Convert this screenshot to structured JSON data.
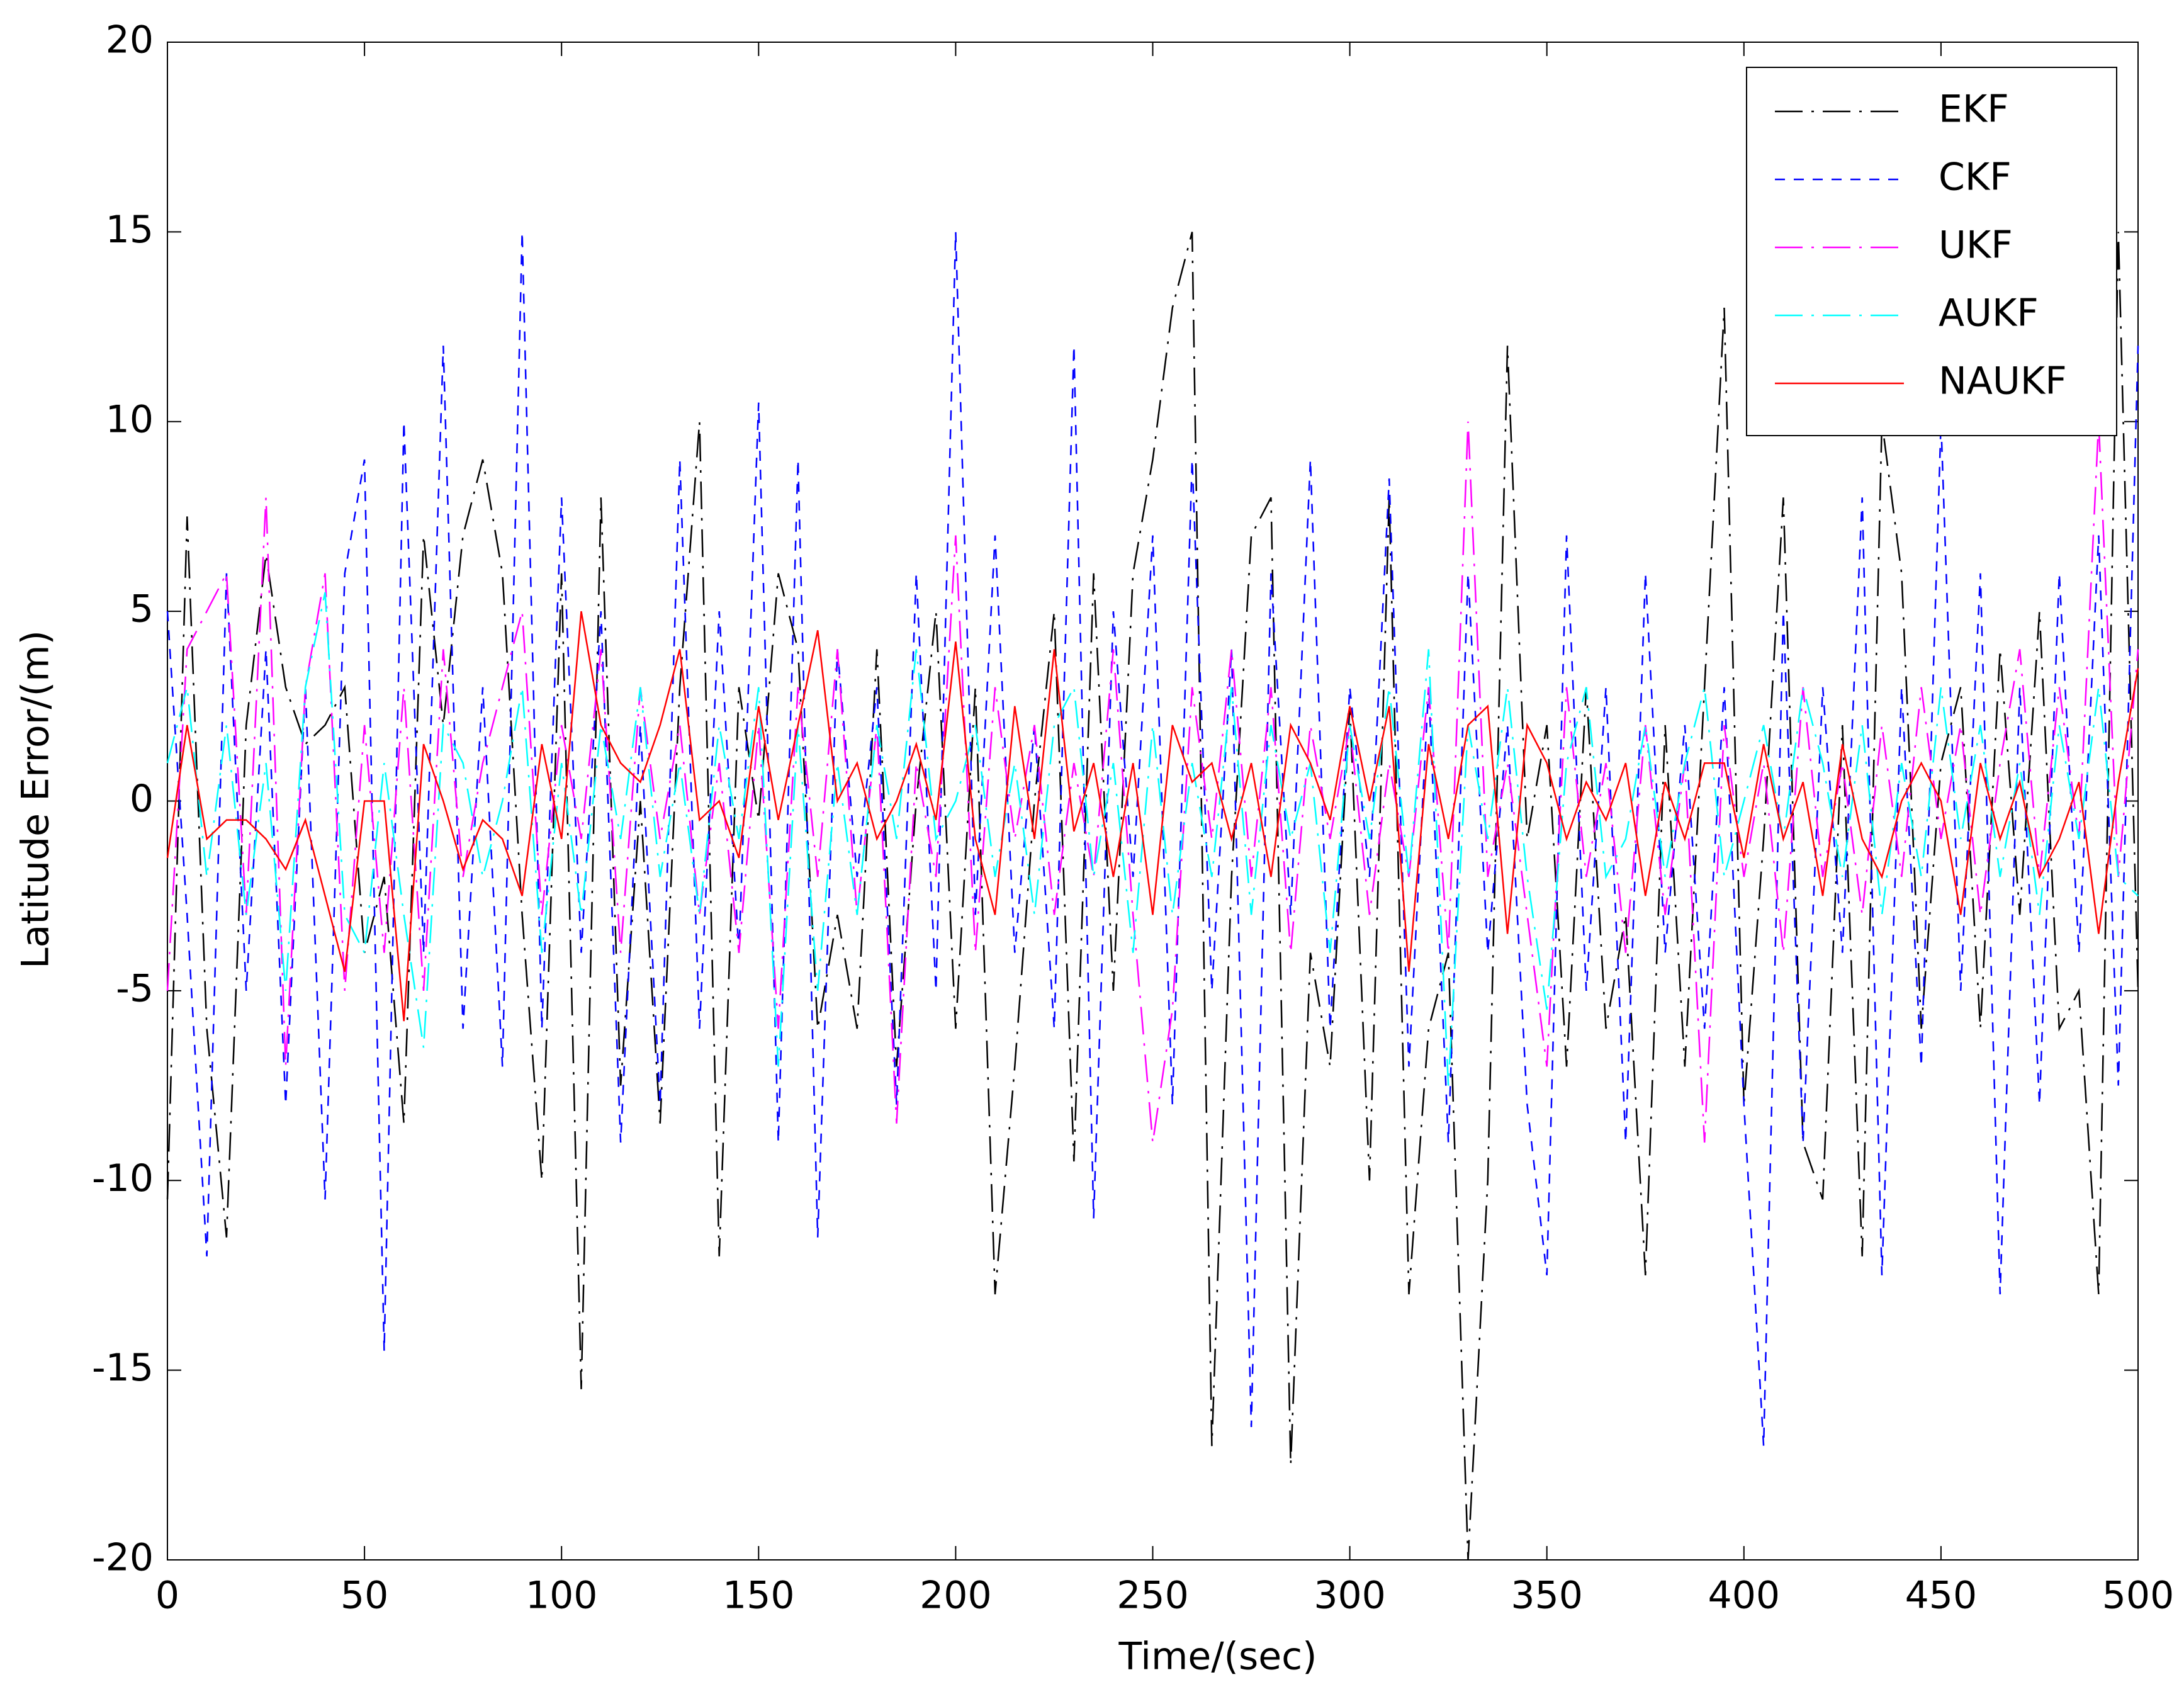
{
  "chart_data": {
    "type": "line",
    "x_label": "Time/(sec)",
    "y_label": "Latitude Error/(m)",
    "xlim": [
      0,
      500
    ],
    "ylim": [
      -20,
      20
    ],
    "xticks": [
      0,
      50,
      100,
      150,
      200,
      250,
      300,
      350,
      400,
      450,
      500
    ],
    "yticks": [
      -20,
      -15,
      -10,
      -5,
      0,
      5,
      10,
      15,
      20
    ],
    "grid": false,
    "legend": "upper right",
    "x": [
      0,
      5,
      10,
      15,
      20,
      25,
      30,
      35,
      40,
      45,
      50,
      55,
      60,
      65,
      70,
      75,
      80,
      85,
      90,
      95,
      100,
      105,
      110,
      115,
      120,
      125,
      130,
      135,
      140,
      145,
      150,
      155,
      160,
      165,
      170,
      175,
      180,
      185,
      190,
      195,
      200,
      205,
      210,
      215,
      220,
      225,
      230,
      235,
      240,
      245,
      250,
      255,
      260,
      265,
      270,
      275,
      280,
      285,
      290,
      295,
      300,
      305,
      310,
      315,
      320,
      325,
      330,
      335,
      340,
      345,
      350,
      355,
      360,
      365,
      370,
      375,
      380,
      385,
      390,
      395,
      400,
      405,
      410,
      415,
      420,
      425,
      430,
      435,
      440,
      445,
      450,
      455,
      460,
      465,
      470,
      475,
      480,
      485,
      490,
      495,
      500
    ],
    "series": [
      {
        "name": "EKF",
        "color": "#000000",
        "linestyle": "dashdot",
        "values": [
          -10.5,
          7.5,
          -6,
          -11.5,
          2,
          6.5,
          3,
          1.5,
          2,
          3,
          -4,
          -2,
          -8.5,
          7,
          2,
          7,
          9,
          6,
          -3,
          -10,
          6,
          -15.5,
          8,
          -7.5,
          0,
          -8.5,
          3,
          10,
          -12,
          3,
          -0.5,
          6,
          4,
          -6,
          -3,
          -6,
          4,
          -7,
          0,
          5,
          -6,
          3,
          -13,
          -7,
          0,
          5,
          -9.5,
          6,
          -5,
          6,
          9,
          13,
          15,
          -17,
          -2,
          7,
          8,
          -17.5,
          -4,
          -7,
          2.5,
          -10,
          8,
          -13,
          -6,
          -4,
          -20,
          -10,
          12,
          -1,
          2,
          -7,
          3,
          -6,
          -3,
          -12.5,
          2,
          -7,
          3,
          13,
          -8,
          -1,
          8,
          -9,
          -10.5,
          2,
          -12,
          10,
          6,
          -6,
          1,
          3,
          -6,
          4,
          -3,
          5,
          -6,
          -5,
          -13,
          15,
          -5
        ]
      },
      {
        "name": "CKF",
        "color": "#0000ff",
        "linestyle": "dashed",
        "values": [
          5,
          -3,
          -12,
          6,
          -5,
          4,
          -8,
          3,
          -10.5,
          6,
          9,
          -14.5,
          10,
          -4,
          12,
          -6,
          3,
          -7,
          15,
          -6,
          8,
          -4,
          5,
          -9,
          2,
          -8,
          9,
          -6,
          5,
          -4,
          10.5,
          -9,
          9,
          -11.5,
          4,
          -2,
          3,
          -8,
          6,
          -5,
          15,
          -3,
          7,
          -4,
          2,
          -6,
          12,
          -11,
          5,
          -2,
          7,
          -8,
          9,
          -5,
          4,
          -16.5,
          6,
          -3,
          9,
          -6,
          3,
          -2,
          8.5,
          -7,
          3,
          -9,
          6,
          -4,
          2,
          -8,
          -12.5,
          7,
          -5,
          3,
          -9,
          6,
          -4,
          2,
          -6,
          3,
          -8,
          -17,
          5,
          -9,
          3,
          -4,
          8,
          -12.5,
          3,
          -7,
          10,
          -5,
          6,
          -13,
          3,
          -8,
          6,
          -4,
          7,
          -7.5,
          12
        ]
      },
      {
        "name": "UKF",
        "color": "#ff00ff",
        "linestyle": "dashdot",
        "values": [
          -5,
          4,
          5,
          6,
          -3,
          8,
          -7,
          3,
          6,
          -5,
          2,
          -4,
          3,
          -5,
          4,
          -2,
          1,
          3,
          5,
          -3,
          2,
          -1,
          4,
          -4,
          3,
          -1,
          2,
          -3,
          1,
          -4,
          2,
          -6,
          3,
          -2,
          4,
          -3,
          2,
          -8.5,
          1,
          -2,
          7,
          -4,
          3,
          -1,
          2,
          -3,
          1,
          -2,
          4,
          -3,
          -9,
          -5.5,
          3,
          -1,
          4,
          -2,
          3,
          -4,
          2,
          -1,
          2,
          -3,
          1,
          -2,
          3,
          -4,
          10,
          -2,
          1,
          -3,
          -7,
          3,
          -2,
          1,
          -4,
          2,
          -3,
          1,
          -9,
          2,
          -2,
          1,
          -4,
          3,
          -2,
          1,
          -3,
          2,
          -2,
          3,
          -1,
          2,
          -3,
          1,
          4,
          -2,
          3,
          -1,
          10,
          -2,
          4
        ]
      },
      {
        "name": "AUKF",
        "color": "#00ffff",
        "linestyle": "dashdot",
        "values": [
          1,
          3,
          -2,
          2,
          -3,
          1,
          -5,
          3,
          5.5,
          -3,
          -4,
          1,
          -3,
          -6.5,
          2,
          1,
          -2,
          0,
          3,
          -4,
          1,
          -3,
          2,
          -1,
          3,
          -2,
          1,
          -3,
          2,
          -1,
          3,
          -7,
          2,
          -5,
          1,
          -3,
          2,
          -1,
          4,
          -1,
          0,
          2,
          -2,
          1,
          -3,
          2,
          3,
          -2,
          1,
          -4,
          2,
          -3,
          1,
          -2,
          3,
          -3,
          2,
          -1,
          1,
          -4,
          2,
          -1,
          3,
          -2,
          4,
          -7.5,
          2,
          -1,
          3,
          -2,
          -5.5,
          1,
          3,
          -2,
          -1,
          2,
          -2,
          1,
          3,
          -2,
          0,
          2,
          -1,
          3,
          1,
          -2,
          2,
          -3,
          1,
          -2,
          3,
          -1,
          2,
          -2,
          1,
          -3,
          2,
          -1,
          3,
          -2,
          -2.5
        ]
      },
      {
        "name": "NAUKF",
        "color": "#ff0000",
        "linestyle": "solid",
        "values": [
          -1.5,
          2,
          -1,
          -0.5,
          -0.5,
          -1,
          -1.8,
          -0.5,
          -2.5,
          -4.5,
          0,
          0,
          -5.8,
          1.5,
          0,
          -1.8,
          -0.5,
          -1,
          -2.5,
          1.5,
          -1,
          5,
          2,
          1,
          0.5,
          2,
          4,
          -0.5,
          0,
          -1.5,
          2.5,
          -0.5,
          2,
          4.5,
          0,
          1,
          -1,
          0,
          1.5,
          -0.5,
          4.2,
          -1,
          -3,
          2.5,
          -1,
          4,
          -0.8,
          1,
          -2,
          1,
          -3,
          2,
          0.5,
          1,
          -1,
          1,
          -2,
          2,
          1,
          -0.5,
          2.5,
          0,
          2.5,
          -4.5,
          1.5,
          -1,
          2,
          2.5,
          -3.5,
          2,
          1,
          -1,
          0.5,
          -0.5,
          1,
          -2.5,
          0.5,
          -1,
          1,
          1,
          -1.5,
          1.5,
          -1,
          0.5,
          -2.5,
          1.5,
          -1,
          -2,
          0,
          1,
          0,
          -3,
          1,
          -1,
          0.5,
          -2,
          -1,
          0.5,
          -3.5,
          0.5,
          3.5
        ]
      }
    ]
  }
}
